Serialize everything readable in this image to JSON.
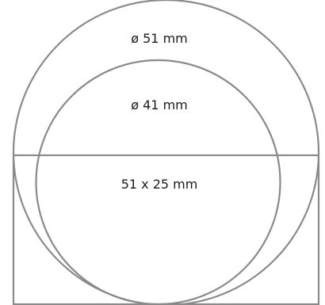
{
  "labels": {
    "large_circle": "ø 51 mm",
    "small_circle": "ø 41 mm",
    "rectangle": "51 x 25 mm"
  },
  "colors": {
    "stroke": "#8a8a8a",
    "text": "#1a1a1a",
    "background": "#ffffff"
  }
}
